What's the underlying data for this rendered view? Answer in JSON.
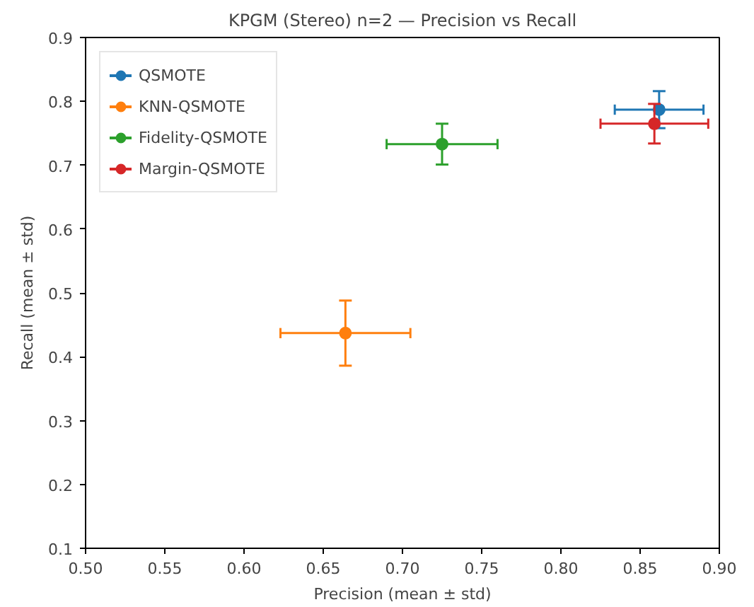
{
  "chart_data": {
    "type": "scatter",
    "title": "KPGM (Stereo) n=2 — Precision vs Recall",
    "xlabel": "Precision (mean ± std)",
    "ylabel": "Recall (mean ± std)",
    "xlim": [
      0.5,
      0.9
    ],
    "ylim": [
      0.1,
      0.9
    ],
    "xticks": [
      {
        "value": 0.5,
        "label": "0.50"
      },
      {
        "value": 0.55,
        "label": "0.55"
      },
      {
        "value": 0.6,
        "label": "0.60"
      },
      {
        "value": 0.65,
        "label": "0.65"
      },
      {
        "value": 0.7,
        "label": "0.70"
      },
      {
        "value": 0.75,
        "label": "0.75"
      },
      {
        "value": 0.8,
        "label": "0.80"
      },
      {
        "value": 0.85,
        "label": "0.85"
      },
      {
        "value": 0.9,
        "label": "0.90"
      }
    ],
    "yticks": [
      0.1,
      0.2,
      0.3,
      0.4,
      0.5,
      0.6,
      0.7,
      0.8,
      0.9
    ],
    "marker": "circle",
    "legend": "top left",
    "grid": false,
    "series": [
      {
        "name": "QSMOTE",
        "color": "#1f77b4",
        "x": [
          0.862
        ],
        "values": [
          0.787
        ],
        "errors": [
          0.029
        ],
        "xerrors": [
          0.028
        ]
      },
      {
        "name": "KNN-QSMOTE",
        "color": "#ff7f0e",
        "x": [
          0.664
        ],
        "values": [
          0.437
        ],
        "errors": [
          0.051
        ],
        "xerrors": [
          0.041
        ]
      },
      {
        "name": "Fidelity-QSMOTE",
        "color": "#2ca02c",
        "x": [
          0.725
        ],
        "values": [
          0.733
        ],
        "errors": [
          0.032
        ],
        "xerrors": [
          0.035
        ]
      },
      {
        "name": "Margin-QSMOTE",
        "color": "#d62728",
        "x": [
          0.859
        ],
        "values": [
          0.765
        ],
        "errors": [
          0.031
        ],
        "xerrors": [
          0.034
        ]
      }
    ]
  }
}
